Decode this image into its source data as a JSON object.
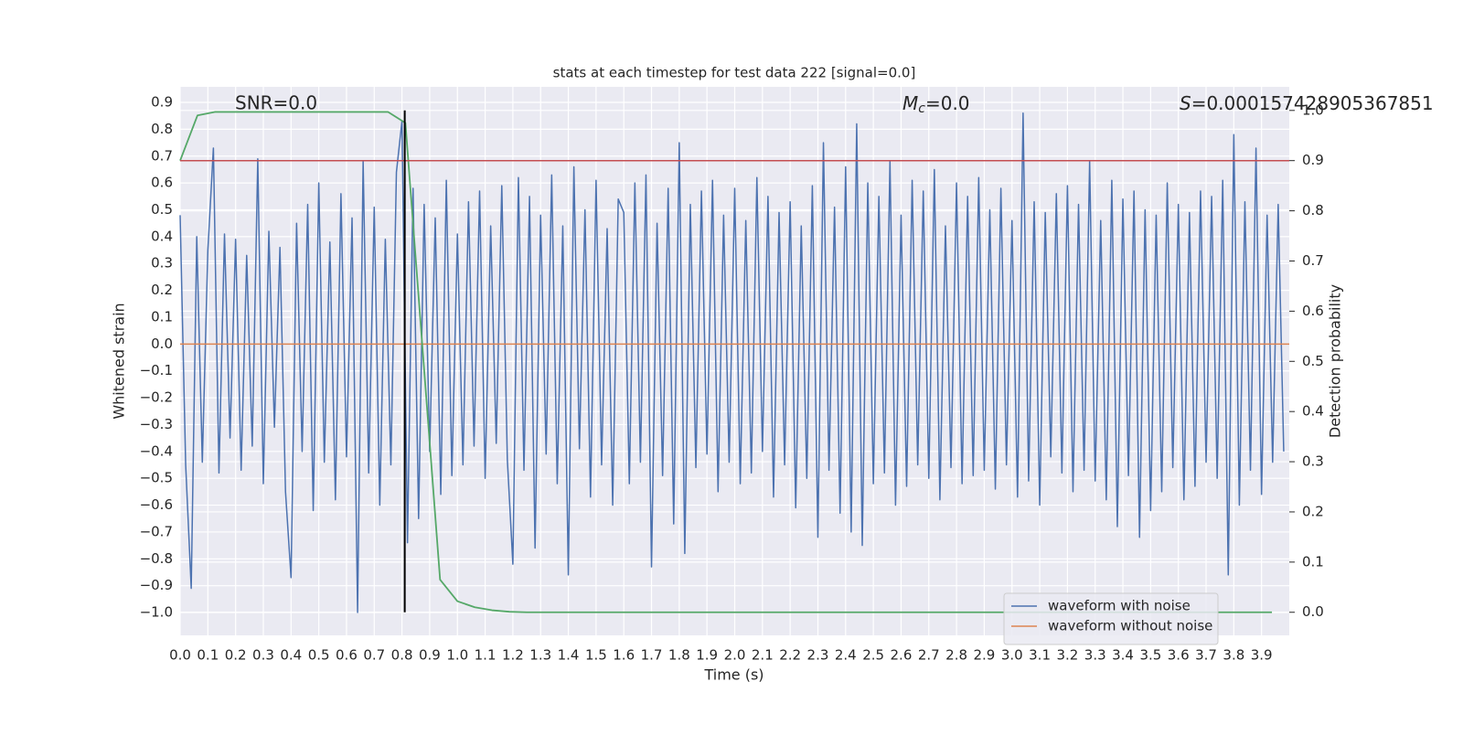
{
  "chart_data": {
    "type": "line",
    "title": "stats at each timestep for test data 222 [signal=0.0]",
    "xlabel": "Time (s)",
    "ylabel": "Whitened strain",
    "y2label": "Detection probability",
    "annotations": [
      {
        "text": "SNR=0.0"
      },
      {
        "symbol": "M",
        "subscript": "c",
        "text": "=0.0"
      },
      {
        "symbol": "S",
        "text": "=0.000157428905367851"
      }
    ],
    "xlim": [
      0,
      4.0
    ],
    "ylim": [
      -1.085,
      0.958
    ],
    "y2lim": [
      -0.046,
      1.047
    ],
    "grid": true,
    "legend": "lower right",
    "xticks": [
      {
        "value": 0,
        "label": "0.0"
      },
      {
        "value": 0.1,
        "label": "0.1"
      },
      {
        "value": 0.2,
        "label": "0.2"
      },
      {
        "value": 0.3,
        "label": "0.3"
      },
      {
        "value": 0.4,
        "label": "0.4"
      },
      {
        "value": 0.5,
        "label": "0.5"
      },
      {
        "value": 0.6,
        "label": "0.6"
      },
      {
        "value": 0.7,
        "label": "0.7"
      },
      {
        "value": 0.8,
        "label": "0.8"
      },
      {
        "value": 0.9,
        "label": "0.9"
      },
      {
        "value": 1.0,
        "label": "1.0"
      },
      {
        "value": 1.1,
        "label": "1.1"
      },
      {
        "value": 1.2,
        "label": "1.2"
      },
      {
        "value": 1.3,
        "label": "1.3"
      },
      {
        "value": 1.4,
        "label": "1.4"
      },
      {
        "value": 1.5,
        "label": "1.5"
      },
      {
        "value": 1.6,
        "label": "1.6"
      },
      {
        "value": 1.7,
        "label": "1.7"
      },
      {
        "value": 1.8,
        "label": "1.8"
      },
      {
        "value": 1.9,
        "label": "1.9"
      },
      {
        "value": 2.0,
        "label": "2.0"
      },
      {
        "value": 2.1,
        "label": "2.1"
      },
      {
        "value": 2.2,
        "label": "2.2"
      },
      {
        "value": 2.3,
        "label": "2.3"
      },
      {
        "value": 2.4,
        "label": "2.4"
      },
      {
        "value": 2.5,
        "label": "2.5"
      },
      {
        "value": 2.6,
        "label": "2.6"
      },
      {
        "value": 2.7,
        "label": "2.7"
      },
      {
        "value": 2.8,
        "label": "2.8"
      },
      {
        "value": 2.9,
        "label": "2.9"
      },
      {
        "value": 3.0,
        "label": "3.0"
      },
      {
        "value": 3.1,
        "label": "3.1"
      },
      {
        "value": 3.2,
        "label": "3.2"
      },
      {
        "value": 3.3,
        "label": "3.3"
      },
      {
        "value": 3.4,
        "label": "3.4"
      },
      {
        "value": 3.5,
        "label": "3.5"
      },
      {
        "value": 3.6,
        "label": "3.6"
      },
      {
        "value": 3.7,
        "label": "3.7"
      },
      {
        "value": 3.8,
        "label": "3.8"
      },
      {
        "value": 3.9,
        "label": "3.9"
      }
    ],
    "yticks": [
      {
        "value": -1.0,
        "label": "−1.0"
      },
      {
        "value": -0.9,
        "label": "−0.9"
      },
      {
        "value": -0.8,
        "label": "−0.8"
      },
      {
        "value": -0.7,
        "label": "−0.7"
      },
      {
        "value": -0.6,
        "label": "−0.6"
      },
      {
        "value": -0.5,
        "label": "−0.5"
      },
      {
        "value": -0.4,
        "label": "−0.4"
      },
      {
        "value": -0.3,
        "label": "−0.3"
      },
      {
        "value": -0.2,
        "label": "−0.2"
      },
      {
        "value": -0.1,
        "label": "−0.1"
      },
      {
        "value": 0,
        "label": "0.0"
      },
      {
        "value": 0.1,
        "label": "0.1"
      },
      {
        "value": 0.2,
        "label": "0.2"
      },
      {
        "value": 0.3,
        "label": "0.3"
      },
      {
        "value": 0.4,
        "label": "0.4"
      },
      {
        "value": 0.5,
        "label": "0.5"
      },
      {
        "value": 0.6,
        "label": "0.6"
      },
      {
        "value": 0.7,
        "label": "0.7"
      },
      {
        "value": 0.8,
        "label": "0.8"
      },
      {
        "value": 0.9,
        "label": "0.9"
      }
    ],
    "y2ticks": [
      {
        "value": 0,
        "label": "0.0"
      },
      {
        "value": 0.1,
        "label": "0.1"
      },
      {
        "value": 0.2,
        "label": "0.2"
      },
      {
        "value": 0.3,
        "label": "0.3"
      },
      {
        "value": 0.4,
        "label": "0.4"
      },
      {
        "value": 0.5,
        "label": "0.5"
      },
      {
        "value": 0.6,
        "label": "0.6"
      },
      {
        "value": 0.7,
        "label": "0.7"
      },
      {
        "value": 0.8,
        "label": "0.8"
      },
      {
        "value": 0.9,
        "label": "0.9"
      },
      {
        "value": 1.0,
        "label": "1.0"
      }
    ],
    "threshold": {
      "value": 0.9,
      "color": "#c44e52"
    },
    "vline": {
      "x": 0.81,
      "color": "#000000"
    },
    "series": [
      {
        "name": "waveform with noise",
        "color": "#4c72b0",
        "x": [
          0,
          0.02,
          0.04,
          0.06,
          0.08,
          0.1,
          0.12,
          0.14,
          0.16,
          0.18,
          0.2,
          0.22,
          0.24,
          0.26,
          0.28,
          0.3,
          0.32,
          0.34,
          0.36,
          0.38,
          0.4,
          0.42,
          0.44,
          0.46,
          0.48,
          0.5,
          0.52,
          0.54,
          0.56,
          0.58,
          0.6,
          0.62,
          0.64,
          0.66,
          0.68,
          0.7,
          0.72,
          0.74,
          0.76,
          0.78,
          0.8,
          0.82,
          0.84,
          0.86,
          0.88,
          0.9,
          0.92,
          0.94,
          0.96,
          0.98,
          1.0,
          1.02,
          1.04,
          1.06,
          1.08,
          1.1,
          1.12,
          1.14,
          1.16,
          1.18,
          1.2,
          1.22,
          1.24,
          1.26,
          1.28,
          1.3,
          1.32,
          1.34,
          1.36,
          1.38,
          1.4,
          1.42,
          1.44,
          1.46,
          1.48,
          1.5,
          1.52,
          1.54,
          1.56,
          1.58,
          1.6,
          1.62,
          1.64,
          1.66,
          1.68,
          1.7,
          1.72,
          1.74,
          1.76,
          1.78,
          1.8,
          1.82,
          1.84,
          1.86,
          1.88,
          1.9,
          1.92,
          1.94,
          1.96,
          1.98,
          2.0,
          2.02,
          2.04,
          2.06,
          2.08,
          2.1,
          2.12,
          2.14,
          2.16,
          2.18,
          2.2,
          2.22,
          2.24,
          2.26,
          2.28,
          2.3,
          2.32,
          2.34,
          2.36,
          2.38,
          2.4,
          2.42,
          2.44,
          2.46,
          2.48,
          2.5,
          2.52,
          2.54,
          2.56,
          2.58,
          2.6,
          2.62,
          2.64,
          2.66,
          2.68,
          2.7,
          2.72,
          2.74,
          2.76,
          2.78,
          2.8,
          2.82,
          2.84,
          2.86,
          2.88,
          2.9,
          2.92,
          2.94,
          2.96,
          2.98,
          3.0,
          3.02,
          3.04,
          3.06,
          3.08,
          3.1,
          3.12,
          3.14,
          3.16,
          3.18,
          3.2,
          3.22,
          3.24,
          3.26,
          3.28,
          3.3,
          3.32,
          3.34,
          3.36,
          3.38,
          3.4,
          3.42,
          3.44,
          3.46,
          3.48,
          3.5,
          3.52,
          3.54,
          3.56,
          3.58,
          3.6,
          3.62,
          3.64,
          3.66,
          3.68,
          3.7,
          3.72,
          3.74,
          3.76,
          3.78,
          3.8,
          3.82,
          3.84,
          3.86,
          3.88,
          3.9,
          3.92,
          3.94,
          3.96,
          3.98
        ],
        "values": [
          0.48,
          -0.45,
          -0.91,
          0.4,
          -0.44,
          0.35,
          0.73,
          -0.48,
          0.41,
          -0.35,
          0.39,
          -0.47,
          0.33,
          -0.38,
          0.69,
          -0.52,
          0.42,
          -0.31,
          0.36,
          -0.55,
          -0.87,
          0.45,
          -0.4,
          0.52,
          -0.62,
          0.6,
          -0.44,
          0.38,
          -0.58,
          0.56,
          -0.42,
          0.47,
          -1.0,
          0.68,
          -0.48,
          0.51,
          -0.6,
          0.39,
          -0.45,
          0.64,
          0.83,
          -0.74,
          0.58,
          -0.65,
          0.52,
          -0.4,
          0.47,
          -0.56,
          0.61,
          -0.49,
          0.41,
          -0.45,
          0.53,
          -0.38,
          0.57,
          -0.5,
          0.44,
          -0.37,
          0.59,
          -0.43,
          -0.82,
          0.62,
          -0.47,
          0.55,
          -0.76,
          0.48,
          -0.41,
          0.63,
          -0.52,
          0.44,
          -0.86,
          0.66,
          -0.39,
          0.5,
          -0.57,
          0.61,
          -0.45,
          0.43,
          -0.6,
          0.54,
          0.49,
          -0.52,
          0.6,
          -0.44,
          0.63,
          -0.83,
          0.45,
          -0.49,
          0.58,
          -0.67,
          0.75,
          -0.78,
          0.52,
          -0.46,
          0.57,
          -0.41,
          0.61,
          -0.55,
          0.48,
          -0.44,
          0.58,
          -0.52,
          0.46,
          -0.48,
          0.62,
          -0.4,
          0.55,
          -0.57,
          0.49,
          -0.45,
          0.53,
          -0.61,
          0.44,
          -0.5,
          0.59,
          -0.72,
          0.75,
          -0.47,
          0.51,
          -0.63,
          0.66,
          -0.7,
          0.82,
          -0.75,
          0.6,
          -0.52,
          0.55,
          -0.48,
          0.68,
          -0.6,
          0.48,
          -0.53,
          0.61,
          -0.45,
          0.57,
          -0.5,
          0.65,
          -0.58,
          0.44,
          -0.46,
          0.6,
          -0.52,
          0.55,
          -0.49,
          0.62,
          -0.47,
          0.5,
          -0.54,
          0.58,
          -0.45,
          0.46,
          -0.57,
          0.86,
          -0.51,
          0.53,
          -0.6,
          0.49,
          -0.42,
          0.56,
          -0.48,
          0.59,
          -0.55,
          0.52,
          -0.47,
          0.68,
          -0.51,
          0.46,
          -0.58,
          0.61,
          -0.68,
          0.54,
          -0.49,
          0.57,
          -0.72,
          0.5,
          -0.62,
          0.48,
          -0.55,
          0.6,
          -0.46,
          0.52,
          -0.58,
          0.49,
          -0.53,
          0.57,
          -0.44,
          0.55,
          -0.5,
          0.61,
          -0.86,
          0.78,
          -0.6,
          0.53,
          -0.47,
          0.73,
          -0.56,
          0.48,
          -0.44,
          0.52,
          -0.4
        ]
      },
      {
        "name": "waveform without noise",
        "color": "#dd8452",
        "x": [
          0,
          4.0
        ],
        "values": [
          0,
          0
        ]
      },
      {
        "color": "#55a868",
        "axis": "y2",
        "x": [
          0,
          0.0625,
          0.125,
          0.1875,
          0.25,
          0.3125,
          0.375,
          0.4375,
          0.5,
          0.5625,
          0.625,
          0.6875,
          0.75,
          0.8125,
          0.875,
          0.9375,
          1.0,
          1.0625,
          1.125,
          1.1875,
          1.25,
          1.3125,
          1.375,
          1.4375,
          1.5,
          1.5625,
          1.625,
          1.6875,
          1.75,
          1.8125,
          1.875,
          1.9375,
          2.0,
          2.0625,
          2.125,
          2.1875,
          2.25,
          2.3125,
          2.375,
          2.4375,
          2.5,
          2.5625,
          2.625,
          2.6875,
          2.75,
          2.8125,
          2.875,
          2.9375,
          3.0,
          3.0625,
          3.125,
          3.1875,
          3.25,
          3.3125,
          3.375,
          3.4375,
          3.5,
          3.5625,
          3.625,
          3.6875,
          3.75,
          3.8125,
          3.875,
          3.9375
        ],
        "values": [
          0.9,
          0.99,
          0.997,
          0.997,
          0.997,
          0.997,
          0.997,
          0.997,
          0.997,
          0.997,
          0.997,
          0.997,
          0.997,
          0.975,
          0.52,
          0.065,
          0.022,
          0.01,
          0.004,
          0.001,
          0,
          0,
          0,
          0,
          0,
          0,
          0,
          0,
          0,
          0,
          0,
          0,
          0,
          0,
          0,
          0,
          0,
          0,
          0,
          0,
          0,
          0,
          0,
          0,
          0,
          0,
          0,
          0,
          0,
          0,
          0,
          0,
          0,
          0,
          0,
          0,
          0,
          0,
          0,
          0,
          0,
          0,
          0,
          0
        ]
      }
    ]
  }
}
